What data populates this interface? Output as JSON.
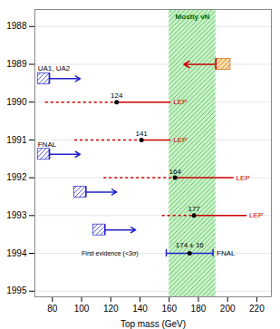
{
  "chart_data": {
    "type": "interval",
    "xlabel": "Top mass (GeV)",
    "xlim": [
      68,
      230
    ],
    "xticks": [
      80,
      100,
      120,
      140,
      160,
      180,
      200,
      220
    ],
    "ylim": [
      1995.15,
      1987.55
    ],
    "yticks": [
      1988,
      1989,
      1990,
      1991,
      1992,
      1993,
      1994,
      1995
    ],
    "grid": true,
    "bands": [
      {
        "x_start": 160,
        "x_end": 192,
        "label": "Mostly vN",
        "color": "#c8f0c8",
        "hatch_color": "#44bb44",
        "label_color": "#006600"
      }
    ],
    "series": [
      {
        "name": "LEP",
        "type": "limit_range",
        "color": "#cc0000",
        "data_labels": true,
        "values": [
          {
            "y": 1990.0,
            "x_start": 75,
            "x": 124,
            "x_end": 161
          },
          {
            "y": 1991.0,
            "x_start": 95,
            "x": 141,
            "x_end": 161
          },
          {
            "y": 1992.0,
            "x_start": 115,
            "x": 164,
            "x_end": 204
          },
          {
            "y": 1993.0,
            "x_start": 155,
            "x": 177,
            "x_end": 213
          }
        ]
      },
      {
        "type": "upper_limit",
        "color": "#cc0000",
        "hatch_color": "#cc6600",
        "fill": "#ffddaa",
        "values": [
          {
            "y": 1989.0,
            "x_start": 170,
            "x": 192,
            "x_end": 202
          }
        ]
      },
      {
        "type": "lower_limit",
        "color": "#2222cc",
        "values": [
          {
            "y": 1989.38,
            "x_start": 70,
            "x": 78,
            "x_end": 99,
            "label": "UA1, UA2"
          },
          {
            "y": 1991.38,
            "x_start": 70,
            "x": 78,
            "x_end": 99,
            "label": "FNAL"
          },
          {
            "y": 1992.38,
            "x_start": 95,
            "x": 103,
            "x_end": 124
          },
          {
            "y": 1993.38,
            "x_start": 108,
            "x": 116,
            "x_end": 137
          }
        ]
      },
      {
        "name": "FNAL",
        "type": "measurement",
        "color": "#2222cc",
        "data_labels": true,
        "values": [
          {
            "y": 1994.0,
            "x": 174,
            "error": 16
          }
        ],
        "value_labels": [
          "174 ± 16"
        ]
      }
    ],
    "annotations": [
      {
        "text": "First evidence (<3σ)",
        "x": 100,
        "y": 1994.0
      }
    ]
  }
}
